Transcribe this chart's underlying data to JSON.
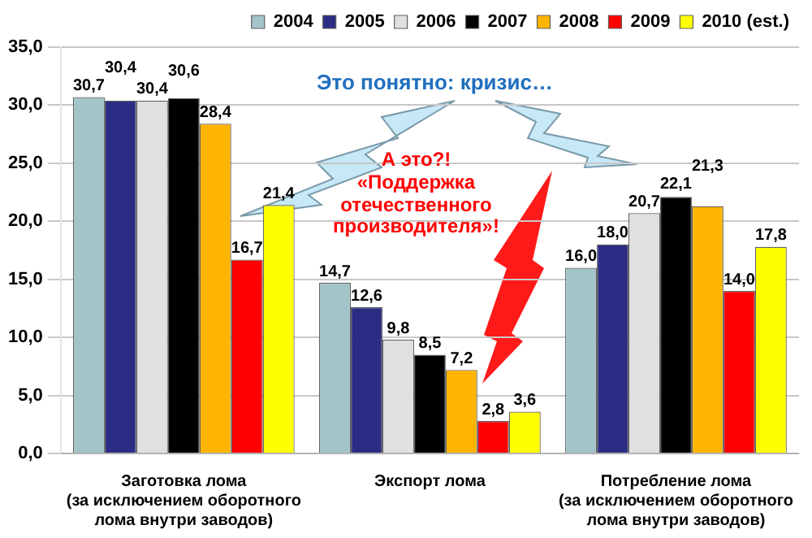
{
  "chart_data": {
    "type": "bar",
    "categories": [
      "Заготовка лома\n(за исключением оборотного\nлома внутри заводов)",
      "Экспорт лома",
      "Потребление лома\n(за исключением оборотного\nлома внутри заводов)"
    ],
    "series": [
      {
        "name": "2004",
        "color": "#a3c4c9",
        "values": [
          30.7,
          14.7,
          16.0
        ],
        "value_labels": [
          "30,7",
          "14,7",
          "16,0"
        ]
      },
      {
        "name": "2005",
        "color": "#2b2d84",
        "values": [
          30.4,
          12.6,
          18.0
        ],
        "value_labels": [
          "30,4",
          "12,6",
          "18,0"
        ]
      },
      {
        "name": "2006",
        "color": "#e0e0e0",
        "values": [
          30.4,
          9.8,
          20.7
        ],
        "value_labels": [
          "30,4",
          "9,8",
          "20,7"
        ]
      },
      {
        "name": "2007",
        "color": "#000000",
        "values": [
          30.6,
          8.5,
          22.1
        ],
        "value_labels": [
          "30,6",
          "8,5",
          "22,1"
        ]
      },
      {
        "name": "2008",
        "color": "#ffb400",
        "values": [
          28.4,
          7.2,
          21.3
        ],
        "value_labels": [
          "28,4",
          "7,2",
          "21,3"
        ]
      },
      {
        "name": "2009",
        "color": "#ff0000",
        "values": [
          16.7,
          2.8,
          14.0
        ],
        "value_labels": [
          "16,7",
          "2,8",
          "14,0"
        ]
      },
      {
        "name": "2010 (est.)",
        "color": "#ffff00",
        "values": [
          21.4,
          3.6,
          17.8
        ],
        "value_labels": [
          "21,4",
          "3,6",
          "17,8"
        ]
      }
    ],
    "ylim": [
      0,
      35
    ],
    "yticks": [
      {
        "value": 0,
        "label": "0,0"
      },
      {
        "value": 5,
        "label": "5,0"
      },
      {
        "value": 10,
        "label": "10,0"
      },
      {
        "value": 15,
        "label": "15,0"
      },
      {
        "value": 20,
        "label": "20,0"
      },
      {
        "value": 25,
        "label": "25,0"
      },
      {
        "value": 30,
        "label": "30,0"
      },
      {
        "value": 35,
        "label": "35,0"
      }
    ],
    "grid": "y",
    "legend": "top right",
    "annotations": [
      "Это понятно: кризис…",
      "А это?!\n«Поддержка\nотечественного\nпроизводителя»!"
    ]
  }
}
